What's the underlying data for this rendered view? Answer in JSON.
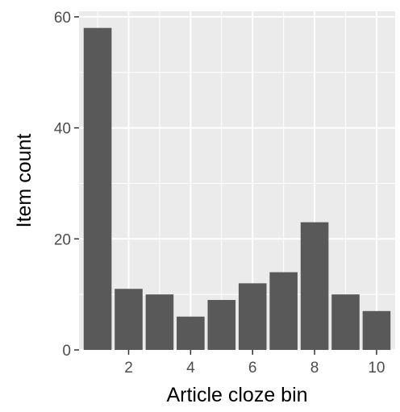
{
  "chart_data": {
    "type": "bar",
    "title": "",
    "xlabel": "Article cloze bin",
    "ylabel": "Item count",
    "x": [
      1,
      2,
      3,
      4,
      5,
      6,
      7,
      8,
      9,
      10
    ],
    "values": [
      58,
      11,
      10,
      6,
      9,
      12,
      14,
      23,
      10,
      7
    ],
    "x_ticks": [
      2,
      4,
      6,
      8,
      10
    ],
    "x_tick_labels": [
      "2",
      "4",
      "6",
      "8",
      "10"
    ],
    "y_ticks": [
      0,
      20,
      40,
      60
    ],
    "y_tick_labels": [
      "0",
      "20",
      "40",
      "60"
    ],
    "xlim": [
      0.4,
      10.6
    ],
    "ylim": [
      0,
      61
    ],
    "grid": true,
    "legend": "none",
    "colors": {
      "panel_background": "#ebebeb",
      "grid_major": "#ffffff",
      "bar_fill": "#595959",
      "tick_mark": "#333333"
    }
  }
}
